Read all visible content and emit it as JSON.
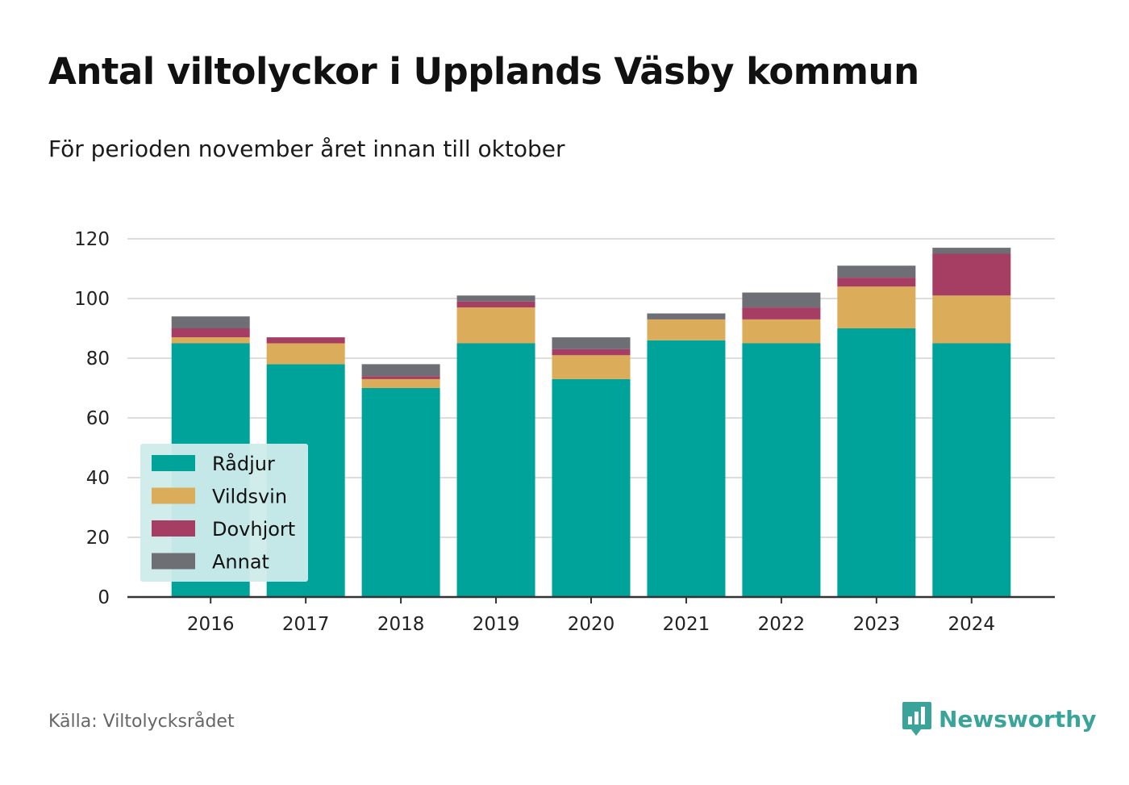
{
  "title": "Antal viltolyckor i Upplands Väsby kommun",
  "subtitle": "För perioden november året innan till oktober",
  "source": "Källa: Viltolycksrådet",
  "brand": {
    "name": "Newsworthy",
    "icon": "newsworthy-logo-icon",
    "color": "#3aa39a"
  },
  "chart_data": {
    "type": "bar",
    "stacked": true,
    "categories": [
      "2016",
      "2017",
      "2018",
      "2019",
      "2020",
      "2021",
      "2022",
      "2023",
      "2024"
    ],
    "series": [
      {
        "name": "Rådjur",
        "color": "#00a39a",
        "values": [
          85,
          78,
          70,
          85,
          73,
          86,
          85,
          90,
          85
        ]
      },
      {
        "name": "Vildsvin",
        "color": "#dbac59",
        "values": [
          2,
          7,
          3,
          12,
          8,
          7,
          8,
          14,
          16
        ]
      },
      {
        "name": "Dovhjort",
        "color": "#a63e64",
        "values": [
          3,
          2,
          1,
          2,
          2,
          0,
          4,
          3,
          14
        ]
      },
      {
        "name": "Annat",
        "color": "#6e6e75",
        "values": [
          4,
          0,
          4,
          2,
          4,
          2,
          5,
          4,
          2
        ]
      }
    ],
    "ylim": [
      0,
      120
    ],
    "yticks": [
      0,
      20,
      40,
      60,
      80,
      100,
      120
    ],
    "grid": true,
    "legend": {
      "position": "bottom-left",
      "background": "#cdeceb"
    }
  }
}
